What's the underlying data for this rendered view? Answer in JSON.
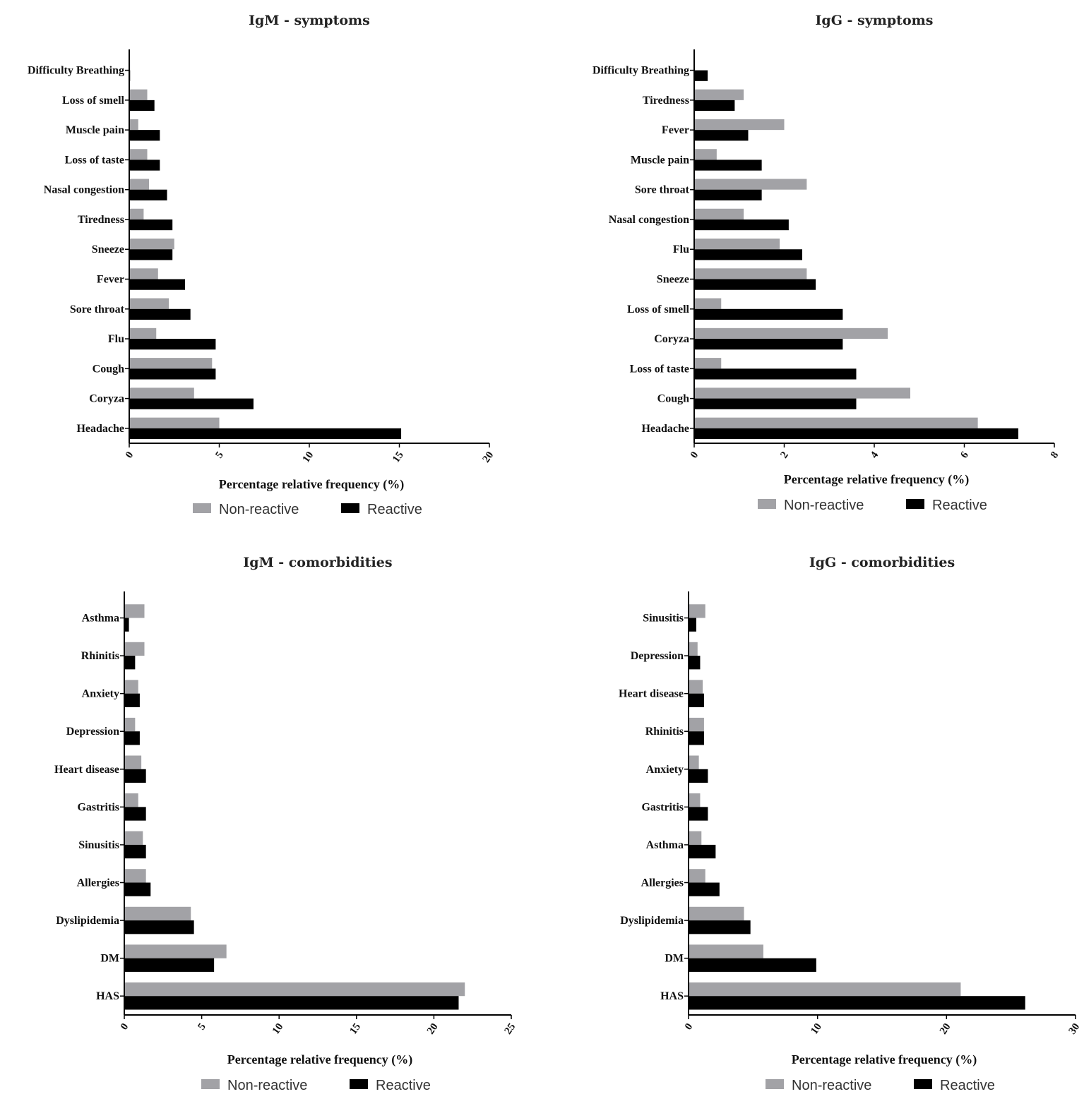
{
  "colors": {
    "non_reactive": "#a2a2a6",
    "reactive": "#000000"
  },
  "chart_data": [
    {
      "type": "bar",
      "orientation": "horizontal",
      "title": "IgM - symptoms",
      "xlabel": "Percentage relative frequency (%)",
      "xlim": [
        0,
        20
      ],
      "xticks": [
        "0",
        "5",
        "10",
        "15",
        "20"
      ],
      "categories": [
        "Difficulty Breathing",
        "Loss of smell",
        "Muscle pain",
        "Loss of taste",
        "Nasal congestion",
        "Tiredness",
        "Sneeze",
        "Fever",
        "Sore throat",
        "Flu",
        "Cough",
        "Coryza",
        "Headache"
      ],
      "series": [
        {
          "name": "Non-reactive",
          "values": [
            0.05,
            1.0,
            0.5,
            1.0,
            1.1,
            0.8,
            2.5,
            1.6,
            2.2,
            1.5,
            4.6,
            3.6,
            5.0
          ]
        },
        {
          "name": "Reactive",
          "values": [
            0.05,
            1.4,
            1.7,
            1.7,
            2.1,
            2.4,
            2.4,
            3.1,
            3.4,
            4.8,
            4.8,
            6.9,
            15.1
          ]
        }
      ],
      "legend": [
        "Non-reactive",
        "Reactive"
      ]
    },
    {
      "type": "bar",
      "orientation": "horizontal",
      "title": "IgG - symptoms",
      "xlabel": "Percentage relative frequency (%)",
      "xlim": [
        0,
        8
      ],
      "xticks": [
        "0",
        "2",
        "4",
        "6",
        "8"
      ],
      "categories": [
        "Difficulty Breathing",
        "Tiredness",
        "Fever",
        "Muscle pain",
        "Sore throat",
        "Nasal congestion",
        "Flu",
        "Sneeze",
        "Loss of smell",
        "Coryza",
        "Loss of taste",
        "Cough",
        "Headache"
      ],
      "series": [
        {
          "name": "Non-reactive",
          "values": [
            0,
            1.1,
            2.0,
            0.5,
            2.5,
            1.1,
            1.9,
            2.5,
            0.6,
            4.3,
            0.6,
            4.8,
            6.3
          ]
        },
        {
          "name": "Reactive",
          "values": [
            0.3,
            0.9,
            1.2,
            1.5,
            1.5,
            2.1,
            2.4,
            2.7,
            3.3,
            3.3,
            3.6,
            3.6,
            7.2
          ]
        }
      ],
      "legend": [
        "Non-reactive",
        "Reactive"
      ]
    },
    {
      "type": "bar",
      "orientation": "horizontal",
      "title": "IgM - comorbidities",
      "xlabel": "Percentage relative frequency (%)",
      "xlim": [
        0,
        25
      ],
      "xticks": [
        "0",
        "5",
        "10",
        "15",
        "20",
        "25"
      ],
      "categories": [
        "Asthma",
        "Rhinitis",
        "Anxiety",
        "Depression",
        "Heart disease",
        "Gastritis",
        "Sinusitis",
        "Allergies",
        "Dyslipidemia",
        "DM",
        "HAS"
      ],
      "series": [
        {
          "name": "Non-reactive",
          "values": [
            1.3,
            1.3,
            0.9,
            0.7,
            1.1,
            0.9,
            1.2,
            1.4,
            4.3,
            6.6,
            22.0
          ]
        },
        {
          "name": "Reactive",
          "values": [
            0.3,
            0.7,
            1.0,
            1.0,
            1.4,
            1.4,
            1.4,
            1.7,
            4.5,
            5.8,
            21.6
          ]
        }
      ],
      "legend": [
        "Non-reactive",
        "Reactive"
      ]
    },
    {
      "type": "bar",
      "orientation": "horizontal",
      "title": "IgG - comorbidities",
      "xlabel": "Percentage relative frequency (%)",
      "xlim": [
        0,
        30
      ],
      "xticks": [
        "0",
        "10",
        "20",
        "30"
      ],
      "categories": [
        "Sinusitis",
        "Depression",
        "Heart disease",
        "Rhinitis",
        "Anxiety",
        "Gastritis",
        "Asthma",
        "Allergies",
        "Dyslipidemia",
        "DM",
        "HAS"
      ],
      "series": [
        {
          "name": "Non-reactive",
          "values": [
            1.3,
            0.7,
            1.1,
            1.2,
            0.8,
            0.9,
            1.0,
            1.3,
            4.3,
            5.8,
            21.1
          ]
        },
        {
          "name": "Reactive",
          "values": [
            0.6,
            0.9,
            1.2,
            1.2,
            1.5,
            1.5,
            2.1,
            2.4,
            4.8,
            9.9,
            26.1
          ]
        }
      ],
      "legend": [
        "Non-reactive",
        "Reactive"
      ]
    }
  ]
}
